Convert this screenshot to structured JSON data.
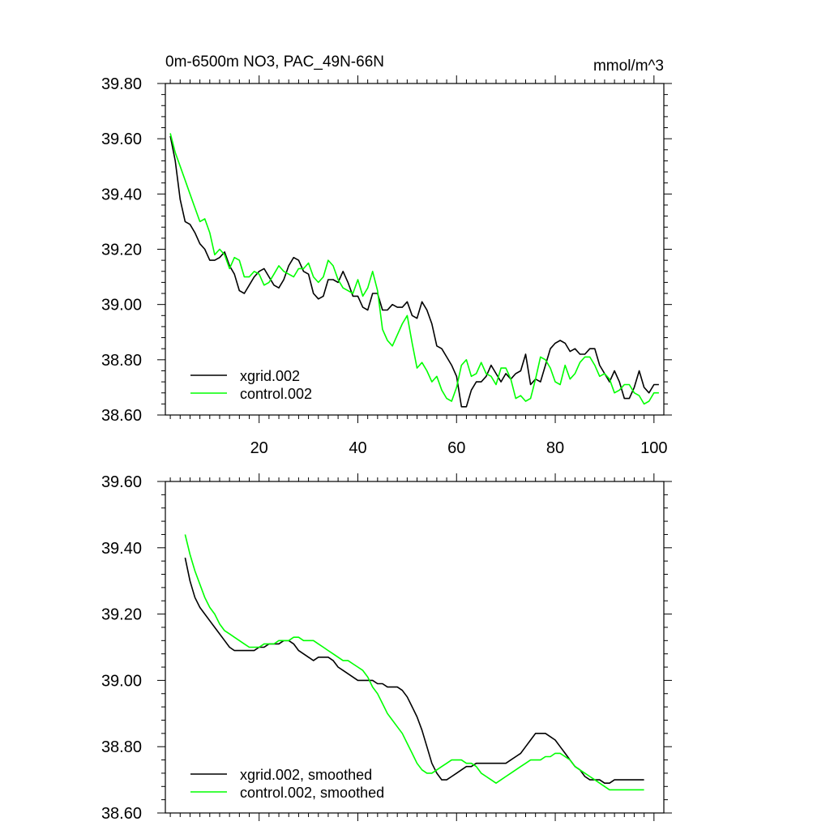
{
  "header": {
    "title": "0m-6500m NO3, PAC_49N-66N",
    "units": "mmol/m^3"
  },
  "chart_data": [
    {
      "type": "line",
      "title": "0m-6500m NO3, PAC_49N-66N",
      "units": "mmol/m^3",
      "xlim": [
        1,
        102
      ],
      "ylim": [
        38.6,
        39.8
      ],
      "xticks": [
        20,
        40,
        60,
        80,
        100
      ],
      "xtick_labels": [
        "20",
        "40",
        "60",
        "80",
        "100"
      ],
      "yticks": [
        38.6,
        38.8,
        39.0,
        39.2,
        39.4,
        39.6,
        39.8
      ],
      "ytick_labels": [
        "38.60",
        "38.80",
        "39.00",
        "39.20",
        "39.40",
        "39.60",
        "39.80"
      ],
      "legend_position": "bottom-left",
      "series": [
        {
          "name": "xgrid.002",
          "color": "#000000",
          "x": [
            2,
            3,
            4,
            5,
            6,
            7,
            8,
            9,
            10,
            11,
            12,
            13,
            14,
            15,
            16,
            17,
            18,
            19,
            20,
            21,
            22,
            23,
            24,
            25,
            26,
            27,
            28,
            29,
            30,
            31,
            32,
            33,
            34,
            35,
            36,
            37,
            38,
            39,
            40,
            41,
            42,
            43,
            44,
            45,
            46,
            47,
            48,
            49,
            50,
            51,
            52,
            53,
            54,
            55,
            56,
            57,
            58,
            59,
            60,
            61,
            62,
            63,
            64,
            65,
            66,
            67,
            68,
            69,
            70,
            71,
            72,
            73,
            74,
            75,
            76,
            77,
            78,
            79,
            80,
            81,
            82,
            83,
            84,
            85,
            86,
            87,
            88,
            89,
            90,
            91,
            92,
            93,
            94,
            95,
            96,
            97,
            98,
            99,
            100,
            101
          ],
          "y": [
            39.61,
            39.52,
            39.38,
            39.3,
            39.29,
            39.26,
            39.22,
            39.2,
            39.16,
            39.16,
            39.17,
            39.19,
            39.14,
            39.11,
            39.05,
            39.04,
            39.07,
            39.1,
            39.12,
            39.13,
            39.1,
            39.07,
            39.06,
            39.09,
            39.14,
            39.17,
            39.16,
            39.12,
            39.11,
            39.04,
            39.02,
            39.03,
            39.09,
            39.09,
            39.08,
            39.12,
            39.08,
            39.03,
            39.03,
            38.99,
            38.98,
            39.04,
            39.04,
            38.98,
            38.98,
            39.0,
            38.99,
            38.99,
            39.01,
            38.96,
            38.95,
            39.01,
            38.98,
            38.93,
            38.85,
            38.84,
            38.81,
            38.78,
            38.74,
            38.63,
            38.63,
            38.69,
            38.72,
            38.72,
            38.74,
            38.78,
            38.75,
            38.72,
            38.75,
            38.73,
            38.75,
            38.76,
            38.82,
            38.71,
            38.73,
            38.72,
            38.78,
            38.84,
            38.86,
            38.87,
            38.86,
            38.83,
            38.84,
            38.82,
            38.82,
            38.84,
            38.84,
            38.78,
            38.75,
            38.72,
            38.76,
            38.72,
            38.66,
            38.66,
            38.7,
            38.76,
            38.7,
            38.68,
            38.71,
            38.71
          ]
        },
        {
          "name": "control.002",
          "color": "#00ff00",
          "x": [
            2,
            3,
            4,
            5,
            6,
            7,
            8,
            9,
            10,
            11,
            12,
            13,
            14,
            15,
            16,
            17,
            18,
            19,
            20,
            21,
            22,
            23,
            24,
            25,
            26,
            27,
            28,
            29,
            30,
            31,
            32,
            33,
            34,
            35,
            36,
            37,
            38,
            39,
            40,
            41,
            42,
            43,
            44,
            45,
            46,
            47,
            48,
            49,
            50,
            51,
            52,
            53,
            54,
            55,
            56,
            57,
            58,
            59,
            60,
            61,
            62,
            63,
            64,
            65,
            66,
            67,
            68,
            69,
            70,
            71,
            72,
            73,
            74,
            75,
            76,
            77,
            78,
            79,
            80,
            81,
            82,
            83,
            84,
            85,
            86,
            87,
            88,
            89,
            90,
            91,
            92,
            93,
            94,
            95,
            96,
            97,
            98,
            99,
            100,
            101
          ],
          "y": [
            39.62,
            39.55,
            39.5,
            39.45,
            39.4,
            39.35,
            39.3,
            39.31,
            39.26,
            39.18,
            39.2,
            39.18,
            39.13,
            39.17,
            39.16,
            39.1,
            39.1,
            39.12,
            39.11,
            39.07,
            39.08,
            39.11,
            39.14,
            39.12,
            39.11,
            39.1,
            39.13,
            39.13,
            39.15,
            39.1,
            39.08,
            39.1,
            39.16,
            39.14,
            39.09,
            39.06,
            39.05,
            39.04,
            39.09,
            39.03,
            39.06,
            39.12,
            39.05,
            38.91,
            38.87,
            38.85,
            38.89,
            38.93,
            38.96,
            38.86,
            38.77,
            38.79,
            38.76,
            38.72,
            38.74,
            38.69,
            38.66,
            38.65,
            38.7,
            38.78,
            38.8,
            38.74,
            38.75,
            38.79,
            38.75,
            38.74,
            38.71,
            38.77,
            38.77,
            38.73,
            38.66,
            38.67,
            38.65,
            38.66,
            38.73,
            38.81,
            38.8,
            38.77,
            38.72,
            38.71,
            38.78,
            38.73,
            38.75,
            38.79,
            38.81,
            38.81,
            38.78,
            38.74,
            38.75,
            38.73,
            38.68,
            38.69,
            38.71,
            38.71,
            38.68,
            38.67,
            38.64,
            38.65,
            38.68,
            38.68
          ]
        }
      ]
    },
    {
      "type": "line",
      "xlim": [
        1,
        102
      ],
      "ylim": [
        38.6,
        39.6
      ],
      "xticks": [
        20,
        40,
        60,
        80,
        100
      ],
      "yticks": [
        38.6,
        38.8,
        39.0,
        39.2,
        39.4,
        39.6
      ],
      "ytick_labels": [
        "38.60",
        "38.80",
        "39.00",
        "39.20",
        "39.40",
        "39.60"
      ],
      "legend_position": "bottom-left",
      "series": [
        {
          "name": "xgrid.002, smoothed",
          "color": "#000000",
          "x": [
            5,
            6,
            7,
            8,
            9,
            10,
            11,
            12,
            13,
            14,
            15,
            16,
            17,
            18,
            19,
            20,
            21,
            22,
            23,
            24,
            25,
            26,
            27,
            28,
            29,
            30,
            31,
            32,
            33,
            34,
            35,
            36,
            37,
            38,
            39,
            40,
            41,
            42,
            43,
            44,
            45,
            46,
            47,
            48,
            49,
            50,
            51,
            52,
            53,
            54,
            55,
            56,
            57,
            58,
            59,
            60,
            61,
            62,
            63,
            64,
            65,
            66,
            67,
            68,
            69,
            70,
            71,
            72,
            73,
            74,
            75,
            76,
            77,
            78,
            79,
            80,
            81,
            82,
            83,
            84,
            85,
            86,
            87,
            88,
            89,
            90,
            91,
            92,
            93,
            94,
            95,
            96,
            97,
            98
          ],
          "y": [
            39.37,
            39.3,
            39.25,
            39.22,
            39.2,
            39.18,
            39.16,
            39.14,
            39.12,
            39.1,
            39.09,
            39.09,
            39.09,
            39.09,
            39.09,
            39.1,
            39.1,
            39.11,
            39.11,
            39.11,
            39.12,
            39.12,
            39.11,
            39.09,
            39.08,
            39.07,
            39.06,
            39.07,
            39.07,
            39.07,
            39.06,
            39.04,
            39.03,
            39.02,
            39.01,
            39.0,
            39.0,
            39.0,
            39.0,
            38.99,
            38.99,
            38.98,
            38.98,
            38.98,
            38.97,
            38.95,
            38.92,
            38.89,
            38.85,
            38.8,
            38.75,
            38.72,
            38.7,
            38.7,
            38.71,
            38.72,
            38.73,
            38.74,
            38.74,
            38.75,
            38.75,
            38.75,
            38.75,
            38.75,
            38.75,
            38.75,
            38.76,
            38.77,
            38.78,
            38.8,
            38.82,
            38.84,
            38.84,
            38.84,
            38.83,
            38.82,
            38.8,
            38.78,
            38.76,
            38.74,
            38.73,
            38.71,
            38.7,
            38.7,
            38.7,
            38.69,
            38.69,
            38.7,
            38.7,
            38.7,
            38.7,
            38.7,
            38.7,
            38.7
          ]
        },
        {
          "name": "control.002, smoothed",
          "color": "#00ff00",
          "x": [
            5,
            6,
            7,
            8,
            9,
            10,
            11,
            12,
            13,
            14,
            15,
            16,
            17,
            18,
            19,
            20,
            21,
            22,
            23,
            24,
            25,
            26,
            27,
            28,
            29,
            30,
            31,
            32,
            33,
            34,
            35,
            36,
            37,
            38,
            39,
            40,
            41,
            42,
            43,
            44,
            45,
            46,
            47,
            48,
            49,
            50,
            51,
            52,
            53,
            54,
            55,
            56,
            57,
            58,
            59,
            60,
            61,
            62,
            63,
            64,
            65,
            66,
            67,
            68,
            69,
            70,
            71,
            72,
            73,
            74,
            75,
            76,
            77,
            78,
            79,
            80,
            81,
            82,
            83,
            84,
            85,
            86,
            87,
            88,
            89,
            90,
            91,
            92,
            93,
            94,
            95,
            96,
            97,
            98
          ],
          "y": [
            39.44,
            39.38,
            39.33,
            39.29,
            39.25,
            39.22,
            39.2,
            39.17,
            39.15,
            39.14,
            39.13,
            39.12,
            39.11,
            39.1,
            39.1,
            39.1,
            39.11,
            39.11,
            39.11,
            39.12,
            39.12,
            39.12,
            39.13,
            39.13,
            39.12,
            39.12,
            39.12,
            39.11,
            39.1,
            39.09,
            39.08,
            39.07,
            39.06,
            39.06,
            39.05,
            39.04,
            39.03,
            39.01,
            38.98,
            38.96,
            38.93,
            38.9,
            38.88,
            38.86,
            38.84,
            38.81,
            38.78,
            38.75,
            38.73,
            38.72,
            38.72,
            38.73,
            38.74,
            38.75,
            38.76,
            38.76,
            38.76,
            38.75,
            38.75,
            38.74,
            38.72,
            38.71,
            38.7,
            38.69,
            38.7,
            38.71,
            38.72,
            38.73,
            38.74,
            38.75,
            38.76,
            38.76,
            38.76,
            38.77,
            38.77,
            38.78,
            38.78,
            38.77,
            38.76,
            38.74,
            38.73,
            38.72,
            38.71,
            38.7,
            38.69,
            38.68,
            38.67,
            38.67,
            38.67,
            38.67,
            38.67,
            38.67,
            38.67,
            38.67
          ]
        }
      ]
    }
  ]
}
